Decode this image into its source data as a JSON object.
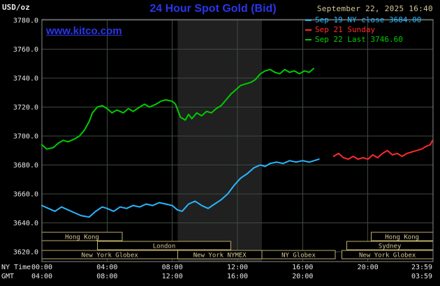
{
  "header": {
    "unit_label": "USD/oz",
    "title": "24 Hour Spot Gold (Bid)",
    "datetime": "September 22, 2025 16:40",
    "watermark": "www.kitco.com"
  },
  "legend": [
    {
      "label": "Sep 19 NY close 3684.00",
      "color": "#29b6ff"
    },
    {
      "label": "Sep 21 Sunday",
      "color": "#ff2a2a"
    },
    {
      "label": "Sep 22 Last 3746.60",
      "color": "#00cc00"
    }
  ],
  "colors": {
    "background": "#000000",
    "title_blue": "#2936e8",
    "watermark_blue": "#2936e8",
    "datetime_tan": "#d6c79a",
    "axis_text": "#e8e8e8",
    "grid": "#3f4a3f",
    "plot_border": "#8a8a8a",
    "nymex_band": "#202020",
    "session_border": "#bfae6a",
    "session_text": "#d6c79a"
  },
  "chart_data": {
    "type": "line",
    "title": "24 Hour Spot Gold (Bid)",
    "ylabel": "USD/oz",
    "ylim": [
      3620,
      3780
    ],
    "xlim_hours": [
      0,
      24
    ],
    "grid": true,
    "legend_position": "top-right",
    "y_ticks": [
      {
        "v": 3780,
        "label": "3780.0"
      },
      {
        "v": 3760,
        "label": "3760.0"
      },
      {
        "v": 3740,
        "label": "3740.0"
      },
      {
        "v": 3720,
        "label": "3720.0"
      },
      {
        "v": 3700,
        "label": "3700.0"
      },
      {
        "v": 3680,
        "label": "3680.0"
      },
      {
        "v": 3660,
        "label": "3660.0"
      },
      {
        "v": 3640,
        "label": "3640.0"
      },
      {
        "v": 3620,
        "label": "3620.0"
      }
    ],
    "axis_row_labels": {
      "ny": "NY Time",
      "gmt": "GMT"
    },
    "x_ticks": [
      {
        "h": 0,
        "ny": "00:00",
        "gmt": "04:00"
      },
      {
        "h": 4,
        "ny": "04:00",
        "gmt": "08:00"
      },
      {
        "h": 8,
        "ny": "08:00",
        "gmt": "12:00"
      },
      {
        "h": 12,
        "ny": "12:00",
        "gmt": "16:00"
      },
      {
        "h": 16,
        "ny": "16:00",
        "gmt": "20:00"
      },
      {
        "h": 20,
        "ny": "20:00",
        "gmt": ""
      },
      {
        "h": 23.983,
        "ny": "23:59",
        "gmt": "03:59"
      }
    ],
    "nymex_band_hours": [
      8.33,
      13.5
    ],
    "sessions": [
      {
        "row": 0,
        "start": 0,
        "end": 4.93,
        "label": "Hong Kong"
      },
      {
        "row": 0,
        "start": 20.2,
        "end": 24,
        "label": "Hong Kong"
      },
      {
        "row": 1,
        "start": 3.4,
        "end": 11.6,
        "label": "London"
      },
      {
        "row": 1,
        "start": 18.7,
        "end": 24,
        "label": "Sydney"
      },
      {
        "row": 2,
        "start": 0,
        "end": 8.33,
        "label": "New York Globex"
      },
      {
        "row": 2,
        "start": 8.33,
        "end": 13.5,
        "label": "New York NYMEX"
      },
      {
        "row": 2,
        "start": 13.5,
        "end": 18.0,
        "label": "NY Globex"
      },
      {
        "row": 2,
        "start": 18.4,
        "end": 24,
        "label": "New York Globex"
      }
    ],
    "series": [
      {
        "name": "Sep 19 NY close",
        "color": "#29b6ff",
        "points": [
          [
            0,
            3652
          ],
          [
            0.4,
            3650
          ],
          [
            0.8,
            3648
          ],
          [
            1.2,
            3651
          ],
          [
            1.6,
            3649
          ],
          [
            2.0,
            3647
          ],
          [
            2.4,
            3645
          ],
          [
            2.9,
            3644
          ],
          [
            3.3,
            3648
          ],
          [
            3.7,
            3651
          ],
          [
            4.0,
            3650
          ],
          [
            4.4,
            3648
          ],
          [
            4.8,
            3651
          ],
          [
            5.2,
            3650
          ],
          [
            5.6,
            3652
          ],
          [
            6.0,
            3651
          ],
          [
            6.4,
            3653
          ],
          [
            6.8,
            3652
          ],
          [
            7.2,
            3654
          ],
          [
            7.6,
            3653
          ],
          [
            8.0,
            3652
          ],
          [
            8.3,
            3649
          ],
          [
            8.6,
            3648
          ],
          [
            9.0,
            3653
          ],
          [
            9.4,
            3655
          ],
          [
            9.8,
            3652
          ],
          [
            10.2,
            3650
          ],
          [
            10.6,
            3653
          ],
          [
            11.0,
            3656
          ],
          [
            11.4,
            3660
          ],
          [
            11.8,
            3666
          ],
          [
            12.2,
            3671
          ],
          [
            12.6,
            3674
          ],
          [
            13.0,
            3678
          ],
          [
            13.4,
            3680
          ],
          [
            13.7,
            3679
          ],
          [
            14.0,
            3681
          ],
          [
            14.4,
            3682
          ],
          [
            14.8,
            3681
          ],
          [
            15.2,
            3683
          ],
          [
            15.6,
            3682
          ],
          [
            16.0,
            3683
          ],
          [
            16.4,
            3682
          ],
          [
            16.7,
            3683
          ],
          [
            17.0,
            3684
          ]
        ]
      },
      {
        "name": "Sep 21 Sunday",
        "color": "#ff2a2a",
        "points": [
          [
            17.9,
            3686
          ],
          [
            18.2,
            3688
          ],
          [
            18.5,
            3685
          ],
          [
            18.8,
            3684
          ],
          [
            19.1,
            3686
          ],
          [
            19.4,
            3684
          ],
          [
            19.7,
            3685
          ],
          [
            20.0,
            3684
          ],
          [
            20.3,
            3687
          ],
          [
            20.6,
            3685
          ],
          [
            20.9,
            3688
          ],
          [
            21.2,
            3690
          ],
          [
            21.5,
            3687
          ],
          [
            21.8,
            3688
          ],
          [
            22.1,
            3686
          ],
          [
            22.4,
            3688
          ],
          [
            22.7,
            3689
          ],
          [
            23.0,
            3690
          ],
          [
            23.3,
            3691
          ],
          [
            23.6,
            3693
          ],
          [
            23.83,
            3694
          ],
          [
            23.98,
            3697
          ]
        ]
      },
      {
        "name": "Sep 22 Last",
        "color": "#00cc00",
        "points": [
          [
            0,
            3694
          ],
          [
            0.3,
            3691
          ],
          [
            0.7,
            3692
          ],
          [
            1.0,
            3695
          ],
          [
            1.3,
            3697
          ],
          [
            1.6,
            3696
          ],
          [
            2.0,
            3698
          ],
          [
            2.3,
            3700
          ],
          [
            2.6,
            3704
          ],
          [
            2.9,
            3710
          ],
          [
            3.1,
            3716
          ],
          [
            3.4,
            3720
          ],
          [
            3.7,
            3721
          ],
          [
            4.0,
            3719
          ],
          [
            4.3,
            3716
          ],
          [
            4.6,
            3718
          ],
          [
            5.0,
            3716
          ],
          [
            5.3,
            3719
          ],
          [
            5.6,
            3717
          ],
          [
            6.0,
            3720
          ],
          [
            6.3,
            3722
          ],
          [
            6.6,
            3720
          ],
          [
            7.0,
            3722
          ],
          [
            7.3,
            3724
          ],
          [
            7.6,
            3725
          ],
          [
            8.0,
            3724
          ],
          [
            8.2,
            3722
          ],
          [
            8.5,
            3713
          ],
          [
            8.8,
            3711
          ],
          [
            9.0,
            3715
          ],
          [
            9.2,
            3712
          ],
          [
            9.5,
            3716
          ],
          [
            9.8,
            3714
          ],
          [
            10.1,
            3717
          ],
          [
            10.4,
            3716
          ],
          [
            10.7,
            3719
          ],
          [
            11.0,
            3721
          ],
          [
            11.3,
            3725
          ],
          [
            11.6,
            3729
          ],
          [
            11.9,
            3732
          ],
          [
            12.2,
            3735
          ],
          [
            12.5,
            3736
          ],
          [
            12.8,
            3737
          ],
          [
            13.1,
            3739
          ],
          [
            13.4,
            3743
          ],
          [
            13.7,
            3745
          ],
          [
            14.0,
            3746
          ],
          [
            14.3,
            3744
          ],
          [
            14.6,
            3743
          ],
          [
            14.9,
            3746
          ],
          [
            15.2,
            3744
          ],
          [
            15.5,
            3745
          ],
          [
            15.8,
            3743
          ],
          [
            16.1,
            3745
          ],
          [
            16.4,
            3744
          ],
          [
            16.67,
            3746.6
          ]
        ]
      }
    ]
  }
}
